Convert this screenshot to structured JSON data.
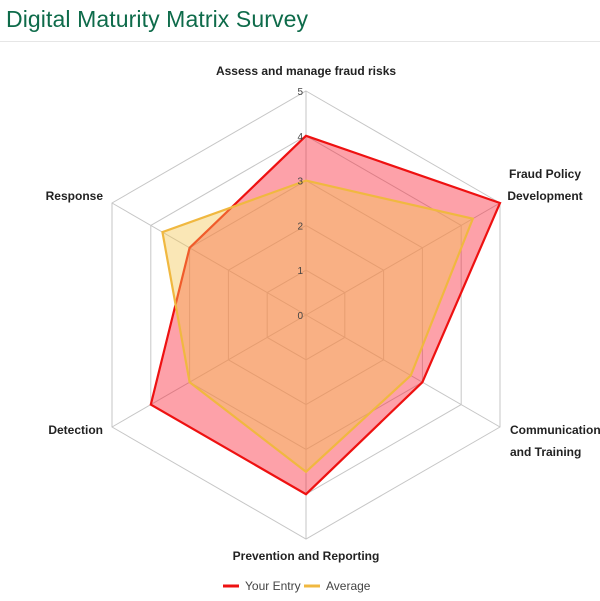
{
  "page": {
    "title": "Digital Maturity Matrix Survey",
    "title_color": "#0e6b4a"
  },
  "chart_data": {
    "type": "radar",
    "axes": [
      [
        "Assess and manage fraud risks"
      ],
      [
        "Fraud Policy",
        "Development"
      ],
      [
        "Communication",
        "and Training"
      ],
      [
        "Prevention and Reporting"
      ],
      [
        "Detection"
      ],
      [
        "Response"
      ]
    ],
    "rlim": [
      0,
      5
    ],
    "ticks": [
      0,
      1,
      2,
      3,
      4,
      5
    ],
    "grid": true,
    "legend_position": "bottom",
    "series": [
      {
        "name": "Your Entry",
        "values": [
          4,
          5,
          3,
          4,
          4,
          3
        ],
        "stroke": "#ee1111",
        "fill": "rgba(250, 30, 50, 0.42)"
      },
      {
        "name": "Average",
        "values": [
          3,
          4.3,
          2.7,
          3.5,
          3,
          3.7
        ],
        "stroke": "#f0b840",
        "fill": "rgba(244, 198, 82, 0.42)"
      }
    ]
  }
}
